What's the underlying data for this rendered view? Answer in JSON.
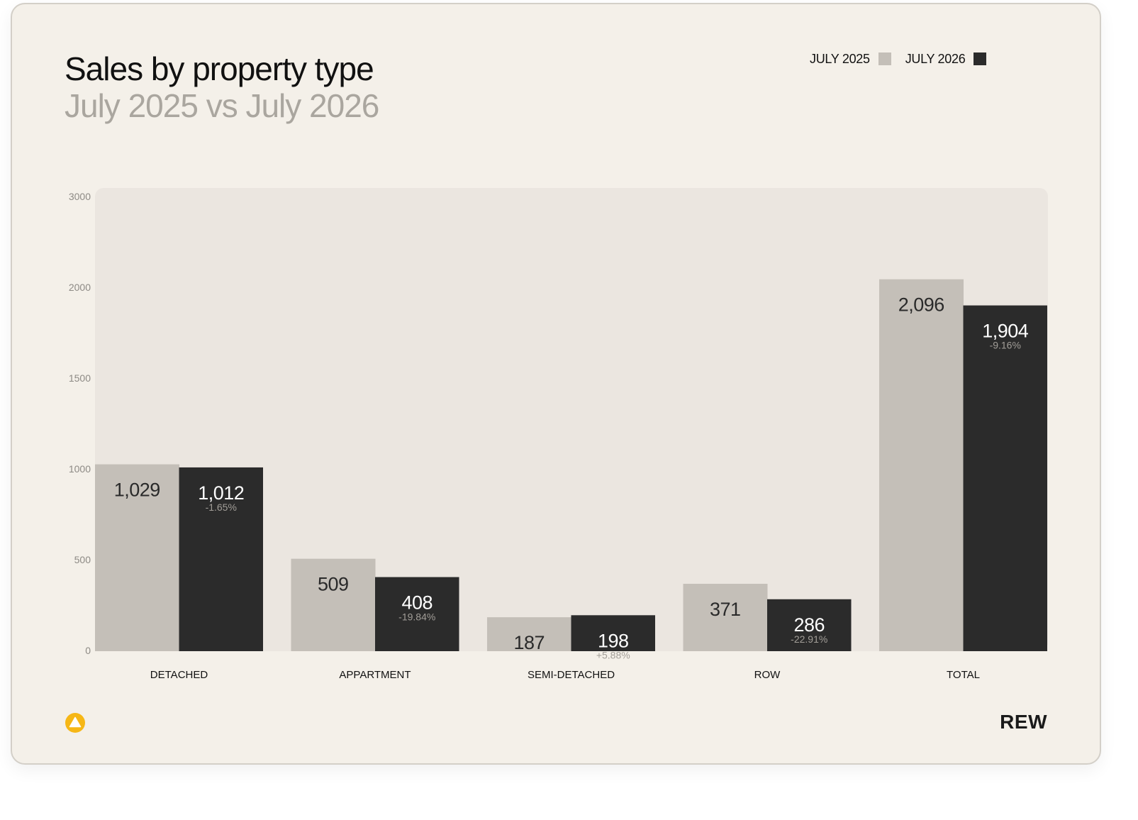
{
  "chart_data": {
    "type": "bar",
    "title": "Sales by property type",
    "subtitle": "July 2025 vs July 2026",
    "categories": [
      "DETACHED",
      "APPARTMENT",
      "SEMI-DETACHED",
      "ROW",
      "TOTAL"
    ],
    "series": [
      {
        "name": "JULY 2025",
        "color": "#c4bfb8",
        "values": [
          1029,
          509,
          187,
          371,
          2096
        ],
        "labels": [
          "1,029",
          "509",
          "187",
          "371",
          "2,096"
        ]
      },
      {
        "name": "JULY 2026",
        "color": "#2b2b2b",
        "values": [
          1012,
          408,
          198,
          286,
          1904
        ],
        "labels": [
          "1,012",
          "408",
          "198",
          "286",
          "1,904"
        ],
        "change_labels": [
          "-1.65%",
          "-19.84%",
          "+5.88%",
          "-22.91%",
          "-9.16%"
        ]
      }
    ],
    "y_ticks": [
      0,
      500,
      1000,
      1500,
      2000,
      3000
    ],
    "ylim": [
      0,
      3000
    ],
    "grid": false,
    "legend_position": "top-right",
    "plot_background": "#ebe6e0"
  },
  "footer": {
    "brand": "REW",
    "logo_icon": "triangle-in-circle-icon",
    "logo_color": "#f6b716"
  }
}
